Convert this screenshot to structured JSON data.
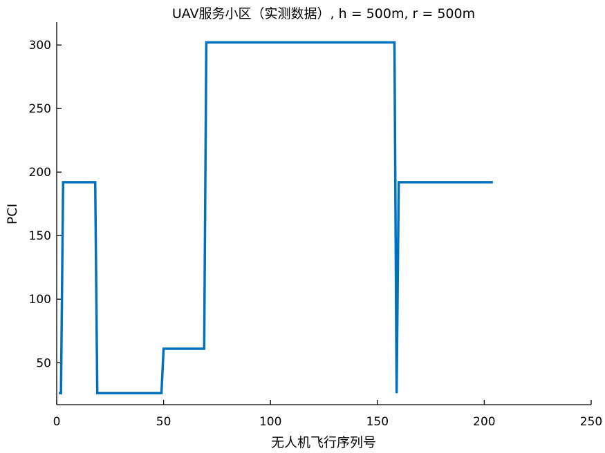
{
  "chart_data": {
    "type": "line",
    "title": "UAV服务小区（实测数据）, h = 500m, r = 500m",
    "xlabel": "无人机飞行序列号",
    "ylabel": "PCI",
    "xlim": [
      0,
      250
    ],
    "ylim": [
      17,
      318
    ],
    "xticks": [
      0,
      50,
      100,
      150,
      200,
      250
    ],
    "yticks": [
      50,
      100,
      150,
      200,
      250,
      300
    ],
    "grid": false,
    "series": [
      {
        "color": "#0072BD",
        "x": [
          1,
          2,
          3,
          18,
          19,
          49,
          50,
          69,
          70,
          158,
          159,
          160,
          204
        ],
        "y": [
          26,
          26,
          192,
          192,
          26,
          26,
          61,
          61,
          302,
          302,
          26,
          192,
          192
        ]
      }
    ]
  }
}
